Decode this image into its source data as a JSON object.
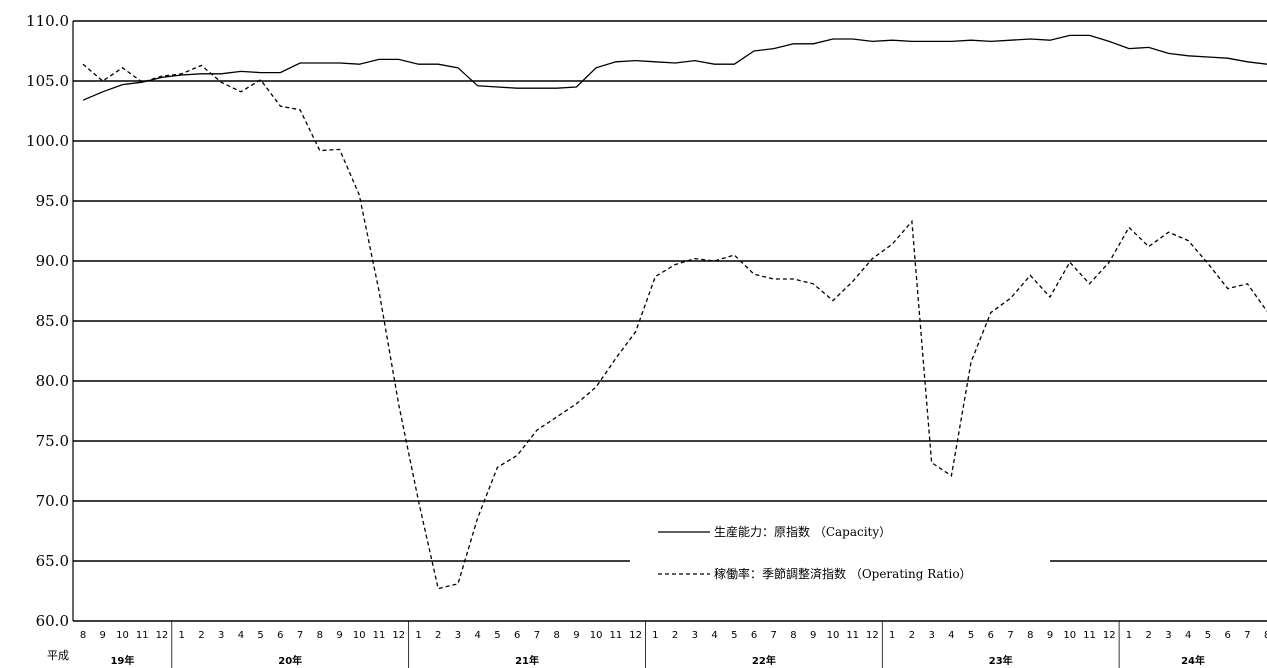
{
  "chart_data": {
    "type": "line",
    "title": "",
    "xlabel": "",
    "ylabel": "",
    "era_label": "平成",
    "ylim": [
      60,
      110
    ],
    "y_ticks": [
      "110.0",
      "105.0",
      "100.0",
      "95.0",
      "90.0",
      "85.0",
      "80.0",
      "75.0",
      "70.0",
      "65.0",
      "60.0"
    ],
    "grid": "horizontal",
    "legend_position": "bottom-center",
    "years": [
      {
        "label": "19年",
        "start": 0,
        "count": 5
      },
      {
        "label": "20年",
        "start": 5,
        "count": 12
      },
      {
        "label": "21年",
        "start": 17,
        "count": 12
      },
      {
        "label": "22年",
        "start": 29,
        "count": 12
      },
      {
        "label": "23年",
        "start": 41,
        "count": 12
      },
      {
        "label": "24年",
        "start": 53,
        "count": 8
      }
    ],
    "months": [
      "8",
      "9",
      "10",
      "11",
      "12",
      "1",
      "2",
      "3",
      "4",
      "5",
      "6",
      "7",
      "8",
      "9",
      "10",
      "11",
      "12",
      "1",
      "2",
      "3",
      "4",
      "5",
      "6",
      "7",
      "8",
      "9",
      "10",
      "11",
      "12",
      "1",
      "2",
      "3",
      "4",
      "5",
      "6",
      "7",
      "8",
      "9",
      "10",
      "11",
      "12",
      "1",
      "2",
      "3",
      "4",
      "5",
      "6",
      "7",
      "8",
      "9",
      "10",
      "11",
      "12",
      "1",
      "2",
      "3",
      "4",
      "5",
      "6",
      "7",
      "8"
    ],
    "series": [
      {
        "name": "生産能力：原指数 （Capacity）",
        "style": "solid",
        "color": "#000000",
        "values": [
          103.4,
          104.1,
          104.7,
          104.9,
          105.3,
          105.5,
          105.6,
          105.6,
          105.8,
          105.7,
          105.7,
          106.5,
          106.5,
          106.5,
          106.4,
          106.8,
          106.8,
          106.4,
          106.4,
          106.1,
          104.6,
          104.5,
          104.4,
          104.4,
          104.4,
          104.5,
          106.1,
          106.6,
          106.7,
          106.6,
          106.5,
          106.7,
          106.4,
          106.4,
          107.5,
          107.7,
          108.1,
          108.1,
          108.5,
          108.5,
          108.3,
          108.4,
          108.3,
          108.3,
          108.3,
          108.4,
          108.3,
          108.4,
          108.5,
          108.4,
          108.8,
          108.8,
          108.3,
          107.7,
          107.8,
          107.3,
          107.1,
          107.0,
          106.9,
          106.6,
          106.4
        ]
      },
      {
        "name": "稼働率：季節調整済指数 （Operating Ratio）",
        "style": "dashed",
        "color": "#000000",
        "values": [
          106.4,
          105.0,
          106.1,
          104.9,
          105.4,
          105.6,
          106.3,
          104.9,
          104.1,
          105.1,
          102.9,
          102.6,
          99.2,
          99.3,
          95.5,
          87.5,
          78.0,
          70.0,
          62.7,
          63.1,
          68.6,
          72.8,
          73.8,
          75.9,
          77.0,
          78.1,
          79.5,
          81.9,
          84.1,
          88.7,
          89.7,
          90.2,
          90.0,
          90.5,
          88.9,
          88.5,
          88.5,
          88.1,
          86.7,
          88.3,
          90.2,
          91.4,
          93.3,
          73.2,
          72.1,
          81.6,
          85.7,
          86.9,
          88.8,
          87.0,
          89.9,
          88.1,
          89.9,
          92.8,
          91.2,
          92.4,
          91.7,
          89.8,
          87.7,
          88.1,
          85.8
        ]
      }
    ]
  }
}
